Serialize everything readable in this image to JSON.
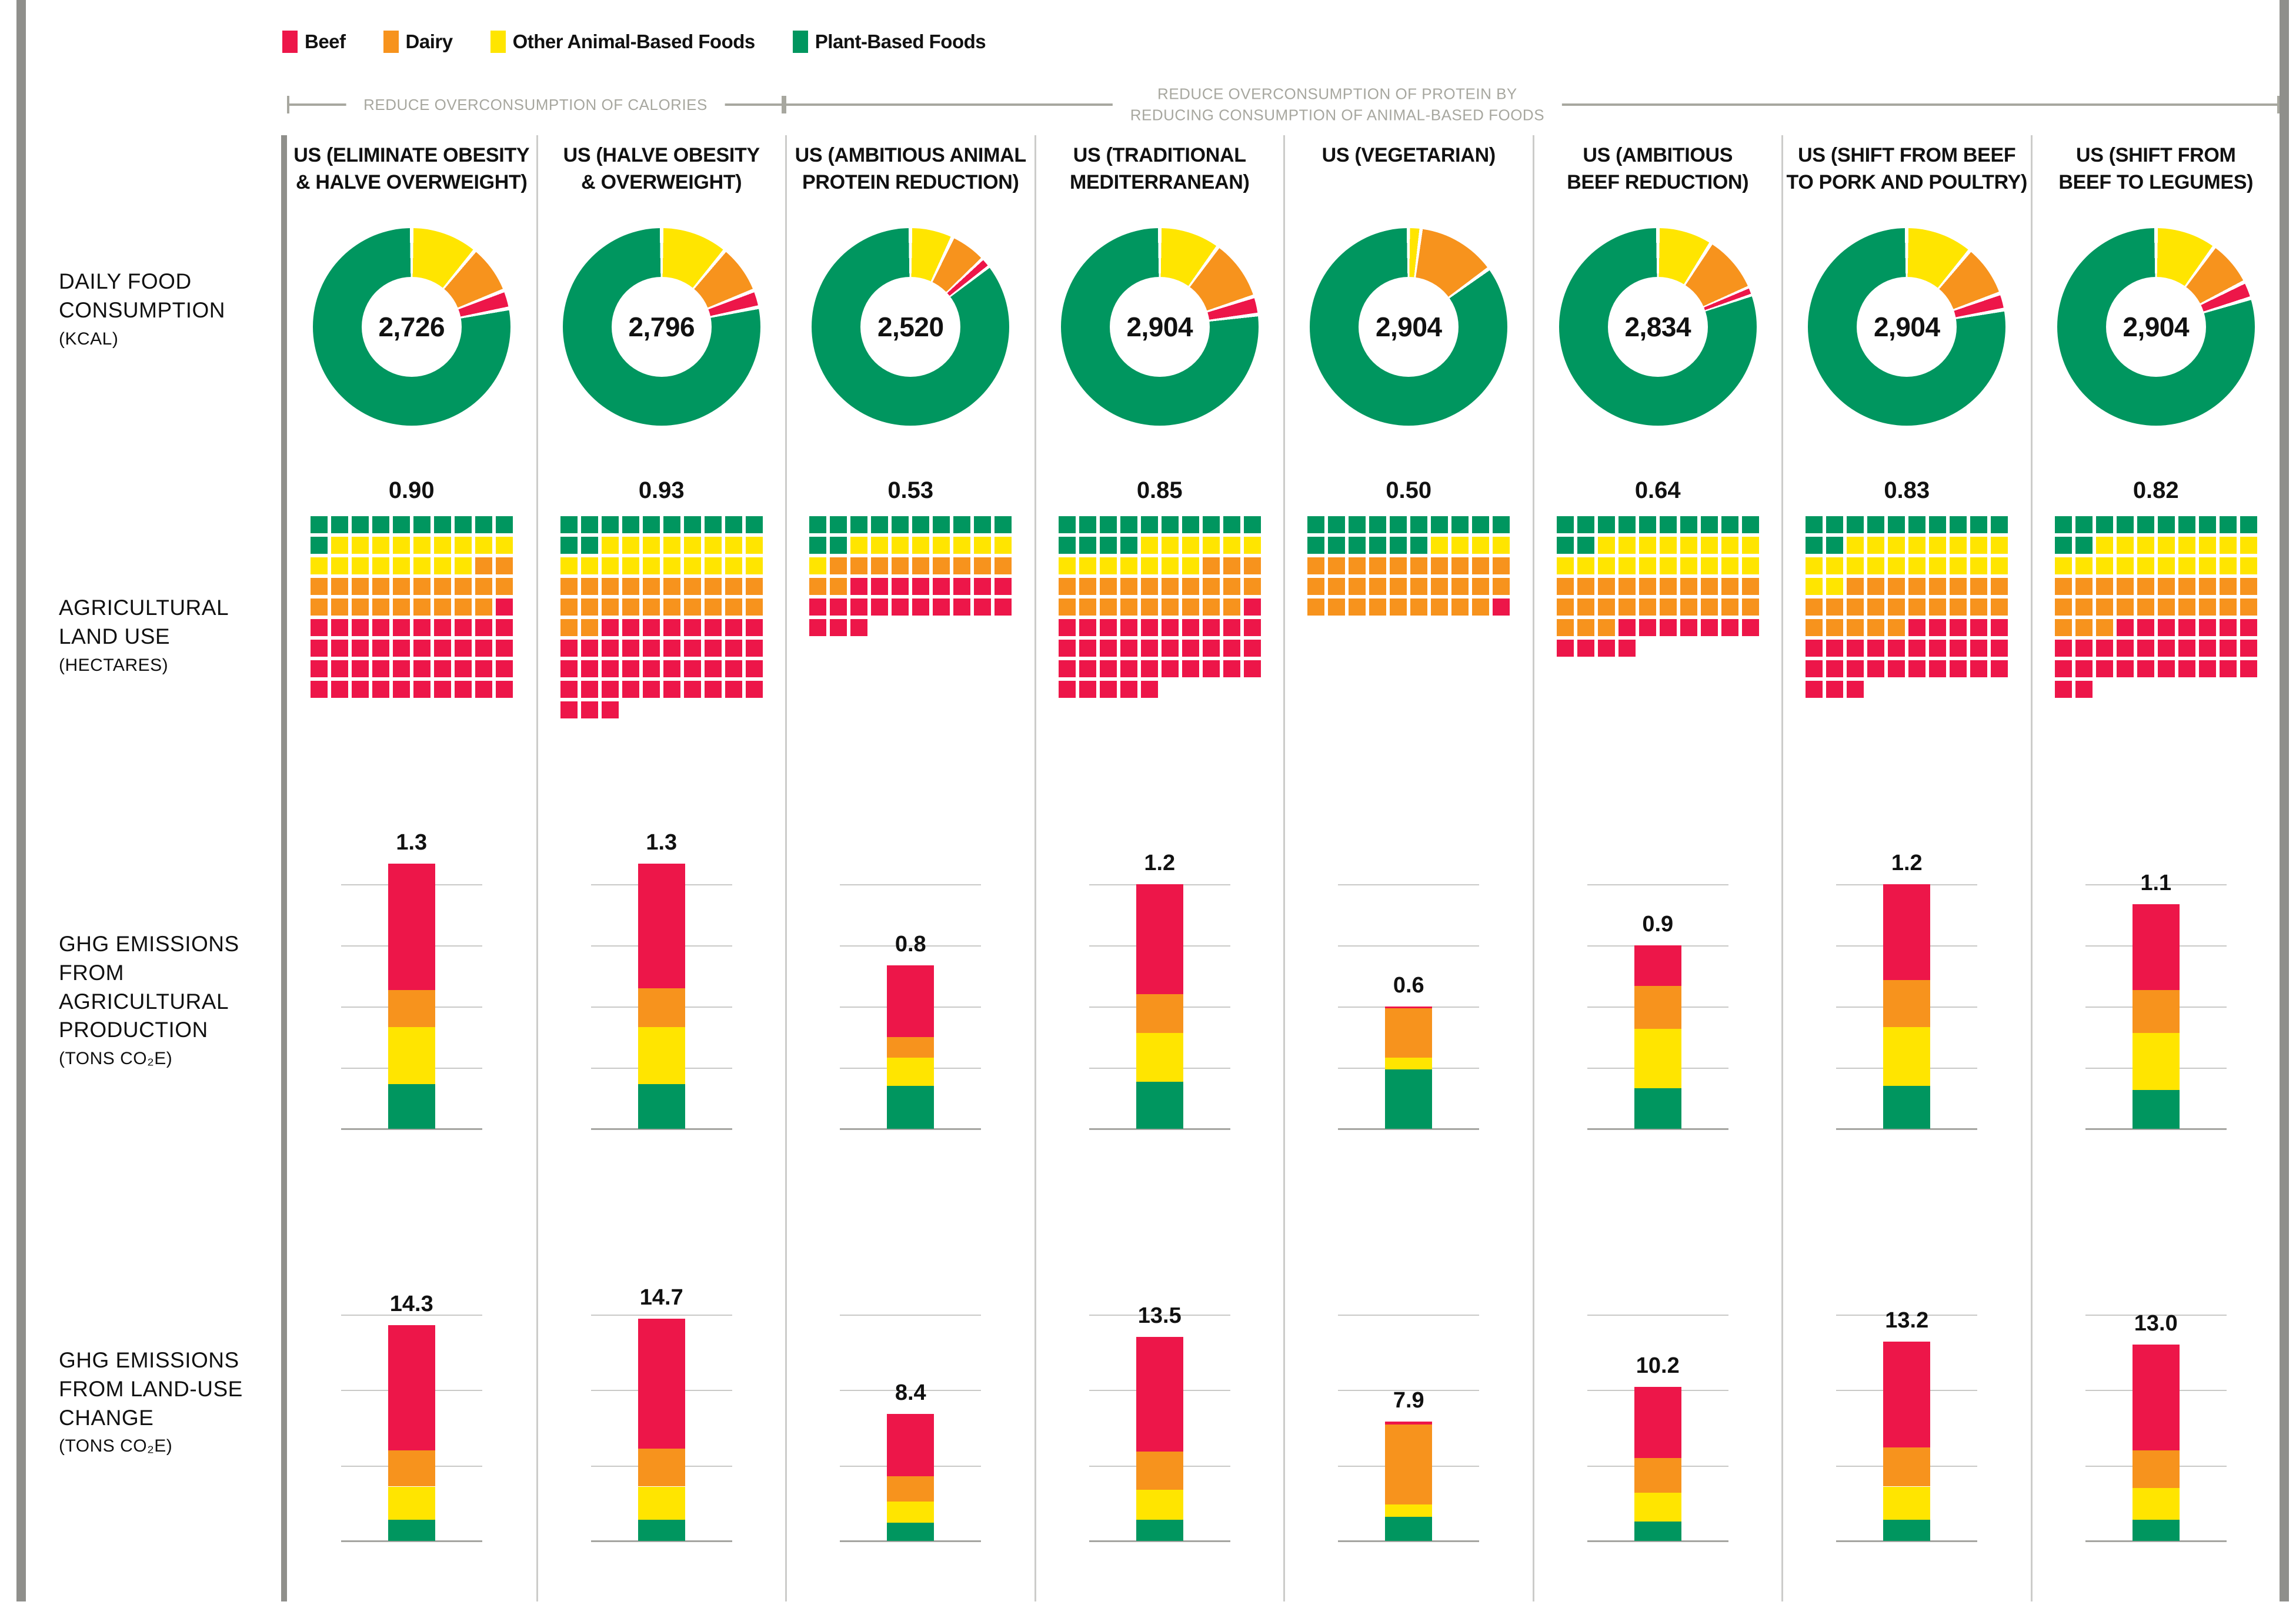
{
  "colors": {
    "beef": "#ED1649",
    "dairy": "#F7931D",
    "other": "#FFE500",
    "plant": "#00965F",
    "bracket": "#A7A79F",
    "divider": "#CCCCCA",
    "frame": "#8F8F8B",
    "gridline": "#C9C9C7",
    "baseline": "#A5A5A1"
  },
  "legend": {
    "items": [
      {
        "id": "beef",
        "label": "Beef"
      },
      {
        "id": "dairy",
        "label": "Dairy"
      },
      {
        "id": "other",
        "label": "Other Animal-Based Foods"
      },
      {
        "id": "plant",
        "label": "Plant-Based Foods"
      }
    ]
  },
  "groups": [
    {
      "label_lines": [
        "REDUCE OVERCONSUMPTION OF CALORIES"
      ]
    },
    {
      "label_lines": [
        "REDUCE OVERCONSUMPTION OF PROTEIN BY",
        "REDUCING CONSUMPTION OF ANIMAL-BASED FOODS"
      ]
    }
  ],
  "row_labels": [
    {
      "lines": [
        "DAILY FOOD",
        "CONSUMPTION"
      ],
      "unit": "(KCAL)"
    },
    {
      "lines": [
        "AGRICULTURAL",
        "LAND USE"
      ],
      "unit": "(HECTARES)"
    },
    {
      "lines": [
        "GHG EMISSIONS",
        "FROM AGRICULTURAL",
        "PRODUCTION"
      ],
      "unit": "(TONS CO₂E)"
    },
    {
      "lines": [
        "GHG EMISSIONS",
        "FROM LAND-USE",
        "CHANGE"
      ],
      "unit": "(TONS CO₂E)"
    }
  ],
  "chart_data": {
    "type": "small-multiples",
    "note": "8 diet scenarios x 4 metric rows; categories are Beef, Dairy, Other Animal-Based Foods, Plant-Based Foods",
    "categories": [
      "Beef",
      "Dairy",
      "Other Animal-Based Foods",
      "Plant-Based Foods"
    ],
    "rows_meta": {
      "kcal": {
        "title": "DAILY FOOD CONSUMPTION",
        "unit": "KCAL",
        "chart": "donut",
        "donut_order": [
          "other",
          "dairy",
          "beef",
          "plant"
        ]
      },
      "land": {
        "title": "AGRICULTURAL LAND USE",
        "unit": "HECTARES",
        "chart": "waffle",
        "square_value": 0.01,
        "columns": 10,
        "fill_order": [
          "plant",
          "other",
          "dairy",
          "beef"
        ]
      },
      "ghg_production": {
        "title": "GHG EMISSIONS FROM AGRICULTURAL PRODUCTION",
        "unit": "TONS CO2E",
        "chart": "stacked-bar",
        "stack_order_bottom_up": [
          "plant",
          "other",
          "dairy",
          "beef"
        ],
        "ymax": 1.37,
        "gridlines": [
          0.3,
          0.6,
          0.9,
          1.2
        ]
      },
      "ghg_land_use": {
        "title": "GHG EMISSIONS FROM LAND-USE CHANGE",
        "unit": "TONS CO2E",
        "chart": "stacked-bar",
        "stack_order_bottom_up": [
          "plant",
          "other",
          "dairy",
          "beef"
        ],
        "ymax": 16.3,
        "gridlines": [
          5,
          10,
          15
        ]
      }
    },
    "scenarios": [
      {
        "header_lines": [
          "US (ELIMINATE OBESITY",
          "& HALVE OVERWEIGHT)"
        ],
        "kcal": {
          "total": 2726,
          "label": "2,726",
          "shares": {
            "other": 0.11,
            "dairy": 0.08,
            "beef": 0.03,
            "plant": 0.78
          }
        },
        "land": {
          "total": 0.9,
          "label": "0.90",
          "squares": {
            "plant": 11,
            "other": 17,
            "dairy": 21,
            "beef": 41
          }
        },
        "ghg_production": {
          "total": 1.3,
          "label": "1.3",
          "segments": {
            "plant": 0.22,
            "other": 0.28,
            "dairy": 0.18,
            "beef": 0.62
          }
        },
        "ghg_land_use": {
          "total": 14.3,
          "label": "14.3",
          "segments": {
            "plant": 1.4,
            "other": 2.2,
            "dairy": 2.4,
            "beef": 8.3
          }
        }
      },
      {
        "header_lines": [
          "US (HALVE OBESITY",
          "& OVERWEIGHT)"
        ],
        "kcal": {
          "total": 2796,
          "label": "2,796",
          "shares": {
            "other": 0.11,
            "dairy": 0.08,
            "beef": 0.028,
            "plant": 0.782
          }
        },
        "land": {
          "total": 0.93,
          "label": "0.93",
          "squares": {
            "plant": 12,
            "other": 18,
            "dairy": 22,
            "beef": 41
          }
        },
        "ghg_production": {
          "total": 1.3,
          "label": "1.3",
          "segments": {
            "plant": 0.22,
            "other": 0.28,
            "dairy": 0.19,
            "beef": 0.61
          }
        },
        "ghg_land_use": {
          "total": 14.7,
          "label": "14.7",
          "segments": {
            "plant": 1.4,
            "other": 2.2,
            "dairy": 2.5,
            "beef": 8.6
          }
        }
      },
      {
        "header_lines": [
          "US (AMBITIOUS ANIMAL",
          "PROTEIN REDUCTION)"
        ],
        "kcal": {
          "total": 2520,
          "label": "2,520",
          "shares": {
            "other": 0.07,
            "dairy": 0.06,
            "beef": 0.015,
            "plant": 0.855
          }
        },
        "land": {
          "total": 0.53,
          "label": "0.53",
          "squares": {
            "plant": 12,
            "other": 9,
            "dairy": 11,
            "beef": 21
          }
        },
        "ghg_production": {
          "total": 0.8,
          "label": "0.8",
          "segments": {
            "plant": 0.21,
            "other": 0.14,
            "dairy": 0.1,
            "beef": 0.35
          }
        },
        "ghg_land_use": {
          "total": 8.4,
          "label": "8.4",
          "segments": {
            "plant": 1.2,
            "other": 1.4,
            "dairy": 1.7,
            "beef": 4.1
          }
        }
      },
      {
        "header_lines": [
          "US (TRADITIONAL",
          "MEDITERRANEAN)"
        ],
        "kcal": {
          "total": 2904,
          "label": "2,904",
          "shares": {
            "other": 0.1,
            "dairy": 0.1,
            "beef": 0.03,
            "plant": 0.77
          }
        },
        "land": {
          "total": 0.85,
          "label": "0.85",
          "squares": {
            "plant": 14,
            "other": 13,
            "dairy": 22,
            "beef": 36
          }
        },
        "ghg_production": {
          "total": 1.2,
          "label": "1.2",
          "segments": {
            "plant": 0.23,
            "other": 0.24,
            "dairy": 0.19,
            "beef": 0.54
          }
        },
        "ghg_land_use": {
          "total": 13.5,
          "label": "13.5",
          "segments": {
            "plant": 1.4,
            "other": 2.0,
            "dairy": 2.5,
            "beef": 7.6
          }
        }
      },
      {
        "header_lines": [
          "US (VEGETARIAN)"
        ],
        "kcal": {
          "total": 2904,
          "label": "2,904",
          "shares": {
            "other": 0.02,
            "dairy": 0.13,
            "beef": 0,
            "plant": 0.85
          }
        },
        "land": {
          "total": 0.5,
          "label": "0.50",
          "squares": {
            "plant": 16,
            "other": 4,
            "dairy": 29,
            "beef": 1
          }
        },
        "ghg_production": {
          "total": 0.6,
          "label": "0.6",
          "segments": {
            "plant": 0.29,
            "other": 0.06,
            "dairy": 0.24,
            "beef": 0.01
          }
        },
        "ghg_land_use": {
          "total": 7.9,
          "label": "7.9",
          "segments": {
            "plant": 1.6,
            "other": 0.8,
            "dairy": 5.3,
            "beef": 0.2
          }
        }
      },
      {
        "header_lines": [
          "US (AMBITIOUS",
          "BEEF REDUCTION)"
        ],
        "kcal": {
          "total": 2834,
          "label": "2,834",
          "shares": {
            "other": 0.09,
            "dairy": 0.095,
            "beef": 0.012,
            "plant": 0.803
          }
        },
        "land": {
          "total": 0.64,
          "label": "0.64",
          "squares": {
            "plant": 12,
            "other": 18,
            "dairy": 23,
            "beef": 11
          }
        },
        "ghg_production": {
          "total": 0.9,
          "label": "0.9",
          "segments": {
            "plant": 0.2,
            "other": 0.29,
            "dairy": 0.21,
            "beef": 0.2
          }
        },
        "ghg_land_use": {
          "total": 10.2,
          "label": "10.2",
          "segments": {
            "plant": 1.3,
            "other": 1.9,
            "dairy": 2.3,
            "beef": 4.7
          }
        }
      },
      {
        "header_lines": [
          "US (SHIFT FROM BEEF",
          "TO PORK AND POULTRY)"
        ],
        "kcal": {
          "total": 2904,
          "label": "2,904",
          "shares": {
            "other": 0.11,
            "dairy": 0.085,
            "beef": 0.027,
            "plant": 0.778
          }
        },
        "land": {
          "total": 0.83,
          "label": "0.83",
          "squares": {
            "plant": 12,
            "other": 20,
            "dairy": 23,
            "beef": 28
          }
        },
        "ghg_production": {
          "total": 1.2,
          "label": "1.2",
          "segments": {
            "plant": 0.21,
            "other": 0.29,
            "dairy": 0.23,
            "beef": 0.47
          }
        },
        "ghg_land_use": {
          "total": 13.2,
          "label": "13.2",
          "segments": {
            "plant": 1.4,
            "other": 2.2,
            "dairy": 2.6,
            "beef": 7.0
          }
        }
      },
      {
        "header_lines": [
          "US (SHIFT FROM",
          "BEEF TO LEGUMES)"
        ],
        "kcal": {
          "total": 2904,
          "label": "2,904",
          "shares": {
            "other": 0.1,
            "dairy": 0.075,
            "beef": 0.028,
            "plant": 0.797
          }
        },
        "land": {
          "total": 0.82,
          "label": "0.82",
          "squares": {
            "plant": 12,
            "other": 18,
            "dairy": 23,
            "beef": 29
          }
        },
        "ghg_production": {
          "total": 1.1,
          "label": "1.1",
          "segments": {
            "plant": 0.19,
            "other": 0.28,
            "dairy": 0.21,
            "beef": 0.42
          }
        },
        "ghg_land_use": {
          "total": 13.0,
          "label": "13.0",
          "segments": {
            "plant": 1.4,
            "other": 2.1,
            "dairy": 2.5,
            "beef": 7.0
          }
        }
      }
    ]
  }
}
